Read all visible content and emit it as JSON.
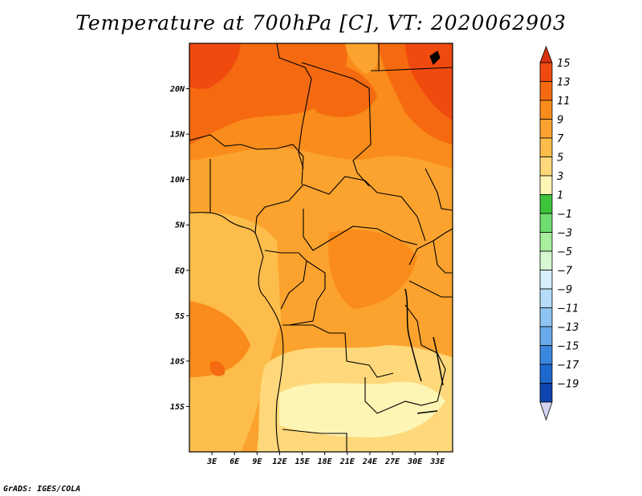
{
  "title": "Temperature at 700hPa [C], VT: 2020062903",
  "credit": "GrADS: IGES/COLA",
  "map": {
    "lon_range": [
      0,
      35
    ],
    "lat_range": [
      -20,
      25
    ],
    "lat_ticks": [
      {
        "value": 20,
        "label": "20N"
      },
      {
        "value": 15,
        "label": "15N"
      },
      {
        "value": 10,
        "label": "10N"
      },
      {
        "value": 5,
        "label": "5N"
      },
      {
        "value": 0,
        "label": "EQ"
      },
      {
        "value": -5,
        "label": "5S"
      },
      {
        "value": -10,
        "label": "10S"
      },
      {
        "value": -15,
        "label": "15S"
      }
    ],
    "lon_ticks": [
      {
        "value": 3,
        "label": "3E"
      },
      {
        "value": 6,
        "label": "6E"
      },
      {
        "value": 9,
        "label": "9E"
      },
      {
        "value": 12,
        "label": "12E"
      },
      {
        "value": 15,
        "label": "15E"
      },
      {
        "value": 18,
        "label": "18E"
      },
      {
        "value": 21,
        "label": "21E"
      },
      {
        "value": 24,
        "label": "24E"
      },
      {
        "value": 27,
        "label": "27E"
      },
      {
        "value": 30,
        "label": "30E"
      },
      {
        "value": 33,
        "label": "33E"
      }
    ]
  },
  "colorbar": {
    "levels": [
      {
        "label": "15",
        "color": "#f04a0f"
      },
      {
        "label": "13",
        "color": "#f56a10"
      },
      {
        "label": "11",
        "color": "#f98c1a"
      },
      {
        "label": "9",
        "color": "#fba32e"
      },
      {
        "label": "7",
        "color": "#fdbd4b"
      },
      {
        "label": "5",
        "color": "#fed87a"
      },
      {
        "label": "3",
        "color": "#fdf5b4"
      },
      {
        "label": "1",
        "color": "#3cc43c"
      },
      {
        "label": "−1",
        "color": "#6fdc6f"
      },
      {
        "label": "−3",
        "color": "#a8ee9e"
      },
      {
        "label": "−5",
        "color": "#d6f7d2"
      },
      {
        "label": "−7",
        "color": "#d7eefb"
      },
      {
        "label": "−9",
        "color": "#b4dcf8"
      },
      {
        "label": "−11",
        "color": "#8ec4f1"
      },
      {
        "label": "−13",
        "color": "#68aaea"
      },
      {
        "label": "−15",
        "color": "#3d88df"
      },
      {
        "label": "−17",
        "color": "#1f68d0"
      },
      {
        "label": "−19",
        "color": "#0e44b0"
      }
    ],
    "top_cap_color": "#d9300e",
    "bottom_cap_color": "#0a1f78",
    "bottom_tip_color": "#d4d4f2"
  }
}
